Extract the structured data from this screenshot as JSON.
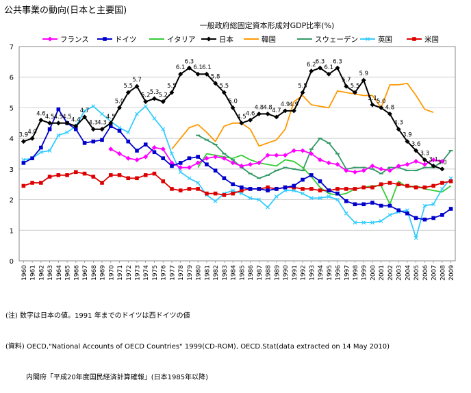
{
  "figure_title": "公共事業の動向(日本と主要国)",
  "notes": [
    "(注) 数字は日本の値。1991 年までのドイツは西ドイツの値",
    "(資料) OECD,\"National Accounts of OECD Countries\" 1999(CD-ROM), OECD.Stat(data extracted on 14 May 2010)",
    "内閣府「平成20年度国民経済計算確報」(日本1985年以降)"
  ],
  "chart_data": {
    "type": "line",
    "title": "一般政府総固定資本形成対GDP比率(%)",
    "xlabel": "",
    "ylabel": "",
    "ylim": [
      0,
      7
    ],
    "yticks": [
      "0",
      "1",
      "2",
      "3",
      "4",
      "5",
      "6",
      "7"
    ],
    "grid": true,
    "legend_position": "top",
    "categories": [
      "1960",
      "1961",
      "1962",
      "1963",
      "1964",
      "1965",
      "1966",
      "1967",
      "1968",
      "1969",
      "1970",
      "1971",
      "1972",
      "1973",
      "1974",
      "1975",
      "1976",
      "1977",
      "1978",
      "1979",
      "1980",
      "1981",
      "1982",
      "1983",
      "1984",
      "1985",
      "1986",
      "1987",
      "1988",
      "1989",
      "1990",
      "1991",
      "1992",
      "1993",
      "1994",
      "1995",
      "1996",
      "1997",
      "1998",
      "1999",
      "2000",
      "2001",
      "2002",
      "2003",
      "2004",
      "2005",
      "2006",
      "2007",
      "2008",
      "2009"
    ],
    "series": [
      {
        "name": "フランス",
        "color": "#ff00ff",
        "marker": "diamond",
        "values": [
          null,
          null,
          null,
          null,
          null,
          null,
          null,
          null,
          null,
          null,
          3.65,
          3.5,
          3.35,
          3.3,
          3.4,
          3.7,
          3.65,
          3.2,
          3.05,
          3.05,
          3.2,
          3.35,
          3.4,
          3.35,
          3.2,
          3.1,
          3.15,
          3.2,
          3.45,
          3.45,
          3.45,
          3.6,
          3.6,
          3.5,
          3.3,
          3.2,
          3.15,
          2.95,
          2.9,
          2.95,
          3.1,
          3.0,
          2.95,
          3.1,
          3.15,
          3.25,
          3.15,
          3.3,
          3.25,
          null
        ]
      },
      {
        "name": "ドイツ",
        "color": "#0000cc",
        "marker": "square",
        "values": [
          3.2,
          3.35,
          3.7,
          4.3,
          4.95,
          4.5,
          4.3,
          3.85,
          3.9,
          3.95,
          4.4,
          4.25,
          3.9,
          3.6,
          3.8,
          3.55,
          3.35,
          3.1,
          3.2,
          3.35,
          3.4,
          3.15,
          2.95,
          2.7,
          2.5,
          2.4,
          2.35,
          2.35,
          2.3,
          2.35,
          2.4,
          2.45,
          2.65,
          2.8,
          2.6,
          2.3,
          2.2,
          1.95,
          1.85,
          1.85,
          1.9,
          1.8,
          1.8,
          1.65,
          1.55,
          1.4,
          1.35,
          1.4,
          1.5,
          1.7
        ]
      },
      {
        "name": "イタリア",
        "color": "#33cc33",
        "marker": "none",
        "values": [
          null,
          null,
          null,
          null,
          null,
          null,
          null,
          null,
          null,
          null,
          null,
          null,
          null,
          null,
          null,
          null,
          null,
          null,
          null,
          null,
          3.05,
          3.5,
          3.45,
          3.4,
          3.35,
          3.45,
          3.3,
          3.2,
          3.15,
          3.1,
          3.3,
          3.25,
          3.05,
          2.75,
          2.4,
          2.2,
          2.15,
          2.2,
          2.35,
          2.4,
          2.45,
          2.45,
          1.85,
          2.6,
          2.4,
          2.45,
          2.35,
          2.3,
          2.25,
          2.45
        ]
      },
      {
        "name": "日本",
        "color": "#000000",
        "marker": "diamond",
        "values": [
          3.9,
          4.0,
          4.6,
          4.5,
          4.5,
          4.5,
          4.4,
          4.7,
          4.3,
          4.3,
          4.5,
          5.0,
          5.5,
          5.7,
          5.2,
          5.3,
          5.2,
          5.5,
          6.1,
          6.3,
          6.1,
          6.1,
          5.8,
          5.5,
          5.0,
          4.5,
          4.6,
          4.8,
          4.8,
          4.7,
          4.9,
          4.9,
          5.5,
          6.2,
          6.3,
          6.1,
          6.3,
          5.7,
          5.5,
          5.9,
          5.1,
          5.0,
          4.8,
          4.3,
          3.9,
          3.6,
          3.3,
          3.1,
          3.0,
          null
        ]
      },
      {
        "name": "韓国",
        "color": "#ff9900",
        "marker": "none",
        "values": [
          null,
          null,
          null,
          null,
          null,
          null,
          null,
          null,
          null,
          null,
          null,
          null,
          null,
          null,
          null,
          null,
          null,
          3.65,
          4.0,
          4.35,
          4.45,
          4.2,
          3.9,
          4.4,
          4.5,
          4.5,
          4.3,
          3.75,
          3.85,
          3.95,
          4.3,
          5.2,
          5.4,
          5.1,
          5.05,
          5.0,
          5.55,
          5.5,
          5.45,
          5.4,
          5.4,
          5.0,
          5.75,
          5.75,
          5.8,
          5.4,
          4.95,
          4.85,
          null,
          null
        ]
      },
      {
        "name": "スウェーデン",
        "color": "#339966",
        "marker": "dash",
        "values": [
          null,
          null,
          null,
          null,
          null,
          null,
          null,
          null,
          null,
          null,
          null,
          null,
          null,
          null,
          null,
          null,
          null,
          null,
          null,
          null,
          4.1,
          3.95,
          3.8,
          3.5,
          3.3,
          3.05,
          2.85,
          2.7,
          2.8,
          2.95,
          3.05,
          3.0,
          2.95,
          3.65,
          4.0,
          3.85,
          3.5,
          3.0,
          3.05,
          3.05,
          3.0,
          2.85,
          3.05,
          3.05,
          2.95,
          2.95,
          3.05,
          3.05,
          3.25,
          3.6
        ]
      },
      {
        "name": "英国",
        "color": "#33ccff",
        "marker": "cross",
        "values": [
          3.3,
          3.35,
          3.55,
          3.6,
          4.1,
          4.2,
          4.4,
          4.9,
          5.05,
          4.8,
          4.55,
          4.35,
          4.2,
          4.8,
          5.05,
          4.65,
          4.3,
          3.5,
          2.9,
          2.7,
          2.55,
          2.15,
          1.95,
          2.2,
          2.3,
          2.2,
          2.05,
          2.0,
          1.75,
          2.1,
          2.3,
          2.3,
          2.2,
          2.05,
          2.05,
          2.1,
          2.0,
          1.55,
          1.25,
          1.25,
          1.25,
          1.3,
          1.5,
          1.6,
          1.65,
          0.75,
          1.8,
          1.85,
          2.35,
          2.7
        ]
      },
      {
        "name": "米国",
        "color": "#dd0000",
        "marker": "square",
        "values": [
          2.45,
          2.55,
          2.55,
          2.75,
          2.8,
          2.8,
          2.9,
          2.85,
          2.75,
          2.55,
          2.8,
          2.8,
          2.7,
          2.7,
          2.8,
          2.85,
          2.6,
          2.35,
          2.3,
          2.35,
          2.35,
          2.2,
          2.2,
          2.15,
          2.2,
          2.3,
          2.35,
          2.35,
          2.4,
          2.35,
          2.4,
          2.4,
          2.35,
          2.35,
          2.3,
          2.3,
          2.35,
          2.35,
          2.35,
          2.4,
          2.4,
          2.5,
          2.55,
          2.5,
          2.45,
          2.4,
          2.4,
          2.45,
          2.55,
          2.6
        ]
      }
    ]
  }
}
